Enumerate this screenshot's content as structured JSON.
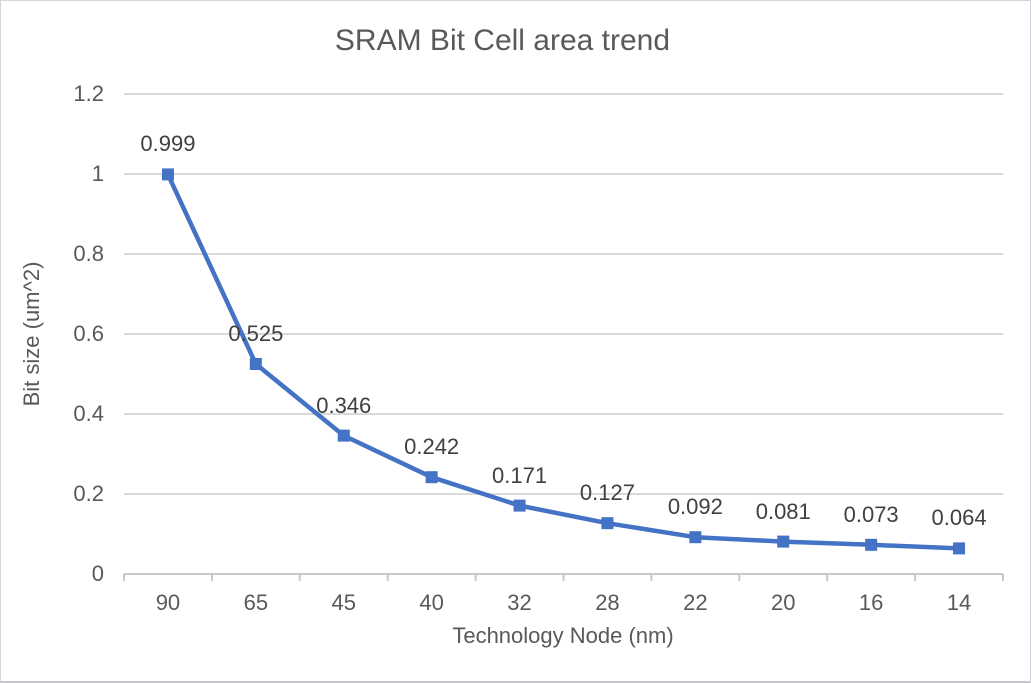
{
  "chart_data": {
    "type": "line",
    "title": "SRAM Bit Cell area trend",
    "xlabel": "Technology Node (nm)",
    "ylabel": "Bit size (um^2)",
    "categories": [
      "90",
      "65",
      "45",
      "40",
      "32",
      "28",
      "22",
      "20",
      "16",
      "14"
    ],
    "values": [
      0.999,
      0.525,
      0.346,
      0.242,
      0.171,
      0.127,
      0.092,
      0.081,
      0.073,
      0.064
    ],
    "data_labels": [
      "0.999",
      "0.525",
      "0.346",
      "0.242",
      "0.171",
      "0.127",
      "0.092",
      "0.081",
      "0.073",
      "0.064"
    ],
    "y_ticks": [
      "0",
      "0.2",
      "0.4",
      "0.6",
      "0.8",
      "1",
      "1.2"
    ],
    "ylim": [
      0,
      1.2
    ],
    "grid": true,
    "legend": "none",
    "marker": "square",
    "colors": {
      "line": "#4472C4",
      "marker": "#4472C4",
      "gridline": "#D9D9D9",
      "axis_line": "#C8C8C8",
      "title_text": "#595959",
      "tick_text": "#595959",
      "data_label_text": "#404040"
    }
  }
}
